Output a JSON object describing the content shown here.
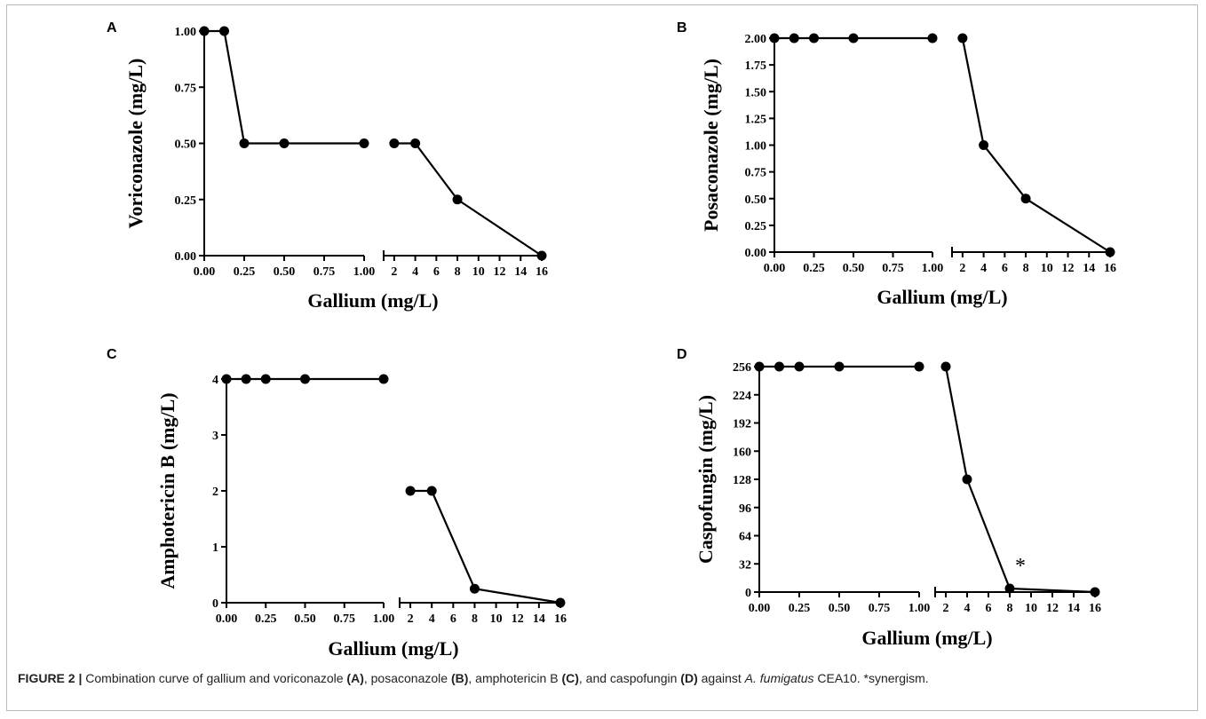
{
  "caption": {
    "label": "FIGURE 2 |",
    "segments": [
      {
        "text": " Combination curve of gallium and voriconazole ",
        "style": "normal"
      },
      {
        "text": "(A)",
        "style": "bold"
      },
      {
        "text": ", posaconazole ",
        "style": "normal"
      },
      {
        "text": "(B)",
        "style": "bold"
      },
      {
        "text": ", amphotericin B ",
        "style": "normal"
      },
      {
        "text": "(C)",
        "style": "bold"
      },
      {
        "text": ", and caspofungin ",
        "style": "normal"
      },
      {
        "text": "(D)",
        "style": "bold"
      },
      {
        "text": " against ",
        "style": "normal"
      },
      {
        "text": "A. fumigatus",
        "style": "italic"
      },
      {
        "text": " CEA10. *synergism.",
        "style": "normal"
      }
    ]
  },
  "chart_data": [
    {
      "panel": "A",
      "type": "line",
      "xlabel": "Gallium (mg/L)",
      "ylabel": "Voriconazole (mg/L)",
      "x_axis_broken": true,
      "x_segment_1": {
        "range": [
          0,
          1
        ],
        "ticks": [
          "0.00",
          "0.25",
          "0.50",
          "0.75",
          "1.00"
        ]
      },
      "x_segment_2": {
        "range": [
          1,
          16
        ],
        "ticks": [
          "2",
          "4",
          "6",
          "8",
          "10",
          "12",
          "14",
          "16"
        ]
      },
      "ylim": [
        0,
        1
      ],
      "yticks": [
        "0.00",
        "0.25",
        "0.50",
        "0.75",
        "1.00"
      ],
      "x": [
        0,
        0.125,
        0.25,
        0.5,
        1,
        2,
        4,
        8,
        16
      ],
      "y": [
        1,
        1,
        0.5,
        0.5,
        0.5,
        0.5,
        0.5,
        0.25,
        0
      ]
    },
    {
      "panel": "B",
      "type": "line",
      "xlabel": "Gallium (mg/L)",
      "ylabel": "Posaconazole (mg/L)",
      "x_axis_broken": true,
      "x_segment_1": {
        "range": [
          0,
          1
        ],
        "ticks": [
          "0.00",
          "0.25",
          "0.50",
          "0.75",
          "1.00"
        ]
      },
      "x_segment_2": {
        "range": [
          1,
          16
        ],
        "ticks": [
          "2",
          "4",
          "6",
          "8",
          "10",
          "12",
          "14",
          "16"
        ]
      },
      "ylim": [
        0,
        2
      ],
      "yticks": [
        "0.00",
        "0.25",
        "0.50",
        "0.75",
        "1.00",
        "1.25",
        "1.50",
        "1.75",
        "2.00"
      ],
      "x": [
        0,
        0.125,
        0.25,
        0.5,
        1,
        2,
        4,
        8,
        16
      ],
      "y": [
        2,
        2,
        2,
        2,
        2,
        2,
        1,
        0.5,
        0
      ]
    },
    {
      "panel": "C",
      "type": "line",
      "xlabel": "Gallium (mg/L)",
      "ylabel": "Amphotericin B (mg/L)",
      "x_axis_broken": true,
      "x_segment_1": {
        "range": [
          0,
          1
        ],
        "ticks": [
          "0.00",
          "0.25",
          "0.50",
          "0.75",
          "1.00"
        ]
      },
      "x_segment_2": {
        "range": [
          1,
          16
        ],
        "ticks": [
          "2",
          "4",
          "6",
          "8",
          "10",
          "12",
          "14",
          "16"
        ]
      },
      "ylim": [
        0,
        4
      ],
      "yticks": [
        "0",
        "1",
        "2",
        "3",
        "4"
      ],
      "x": [
        0,
        0.125,
        0.25,
        0.5,
        1,
        2,
        4,
        8,
        16
      ],
      "y": [
        4,
        4,
        4,
        4,
        4,
        2,
        2,
        0.25,
        0
      ]
    },
    {
      "panel": "D",
      "type": "line",
      "xlabel": "Gallium (mg/L)",
      "ylabel": "Caspofungin (mg/L)",
      "x_axis_broken": true,
      "x_segment_1": {
        "range": [
          0,
          1
        ],
        "ticks": [
          "0.00",
          "0.25",
          "0.50",
          "0.75",
          "1.00"
        ]
      },
      "x_segment_2": {
        "range": [
          1,
          16
        ],
        "ticks": [
          "2",
          "4",
          "6",
          "8",
          "10",
          "12",
          "14",
          "16"
        ]
      },
      "ylim": [
        0,
        256
      ],
      "yticks": [
        "0",
        "32",
        "64",
        "96",
        "128",
        "160",
        "192",
        "224",
        "256"
      ],
      "x": [
        0,
        0.125,
        0.25,
        0.5,
        1,
        2,
        4,
        8,
        16
      ],
      "y": [
        256,
        256,
        256,
        256,
        256,
        256,
        128,
        4,
        0
      ],
      "annotations": [
        {
          "text": "*",
          "x": 8,
          "y": 4
        }
      ]
    }
  ]
}
